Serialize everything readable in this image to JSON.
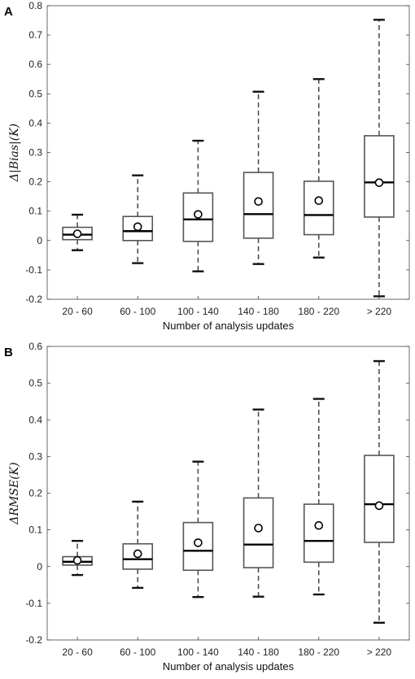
{
  "figure": {
    "panels": [
      {
        "letter": "A",
        "ylabel": "Δ|Bias|(K)",
        "xlabel": "Number of analysis updates"
      },
      {
        "letter": "B",
        "ylabel": "ΔRMSE(K)",
        "xlabel": "Number of analysis updates"
      }
    ]
  },
  "chart_data": [
    {
      "type": "box",
      "panel": "A",
      "title": "",
      "xlabel": "Number of analysis updates",
      "ylabel": "Δ|Bias|(K)",
      "ylim": [
        -0.2,
        0.8
      ],
      "yticks": [
        -0.2,
        -0.1,
        0,
        0.1,
        0.2,
        0.3,
        0.4,
        0.5,
        0.6,
        0.7,
        0.8
      ],
      "ytick_labels": [
        "-0.2",
        "-0.1",
        "0",
        "0.1",
        "0.2",
        "0.3",
        "0.4",
        "0.5",
        "0.6",
        "0.7",
        "0.8"
      ],
      "grid": false,
      "categories": [
        "20 - 60",
        "60 - 100",
        "100 - 140",
        "140 - 180",
        "180 - 220",
        "> 220"
      ],
      "boxes": [
        {
          "min": -0.033,
          "q1": 0.003,
          "median": 0.02,
          "q3": 0.045,
          "max": 0.088,
          "mean": 0.023
        },
        {
          "min": -0.077,
          "q1": 0.0,
          "median": 0.032,
          "q3": 0.082,
          "max": 0.222,
          "mean": 0.047
        },
        {
          "min": -0.105,
          "q1": -0.003,
          "median": 0.072,
          "q3": 0.162,
          "max": 0.34,
          "mean": 0.089
        },
        {
          "min": -0.08,
          "q1": 0.008,
          "median": 0.09,
          "q3": 0.232,
          "max": 0.507,
          "mean": 0.133
        },
        {
          "min": -0.058,
          "q1": 0.02,
          "median": 0.087,
          "q3": 0.202,
          "max": 0.55,
          "mean": 0.136
        },
        {
          "min": -0.19,
          "q1": 0.08,
          "median": 0.198,
          "q3": 0.357,
          "max": 0.752,
          "mean": 0.197
        }
      ]
    },
    {
      "type": "box",
      "panel": "B",
      "title": "",
      "xlabel": "Number of analysis updates",
      "ylabel": "ΔRMSE(K)",
      "ylim": [
        -0.2,
        0.6
      ],
      "yticks": [
        -0.2,
        -0.1,
        0,
        0.1,
        0.2,
        0.3,
        0.4,
        0.5,
        0.6
      ],
      "ytick_labels": [
        "-0.2",
        "-0.1",
        "0",
        "0.1",
        "0.2",
        "0.3",
        "0.4",
        "0.5",
        "0.6"
      ],
      "grid": false,
      "categories": [
        "20 - 60",
        "60 - 100",
        "100 - 140",
        "140 - 180",
        "180 - 220",
        "> 220"
      ],
      "boxes": [
        {
          "min": -0.023,
          "q1": 0.004,
          "median": 0.013,
          "q3": 0.027,
          "max": 0.07,
          "mean": 0.017
        },
        {
          "min": -0.058,
          "q1": -0.007,
          "median": 0.02,
          "q3": 0.062,
          "max": 0.177,
          "mean": 0.035
        },
        {
          "min": -0.083,
          "q1": -0.01,
          "median": 0.043,
          "q3": 0.12,
          "max": 0.286,
          "mean": 0.065
        },
        {
          "min": -0.082,
          "q1": -0.003,
          "median": 0.06,
          "q3": 0.187,
          "max": 0.428,
          "mean": 0.105
        },
        {
          "min": -0.076,
          "q1": 0.012,
          "median": 0.07,
          "q3": 0.17,
          "max": 0.457,
          "mean": 0.112
        },
        {
          "min": -0.153,
          "q1": 0.066,
          "median": 0.17,
          "q3": 0.303,
          "max": 0.56,
          "mean": 0.166
        }
      ]
    }
  ]
}
